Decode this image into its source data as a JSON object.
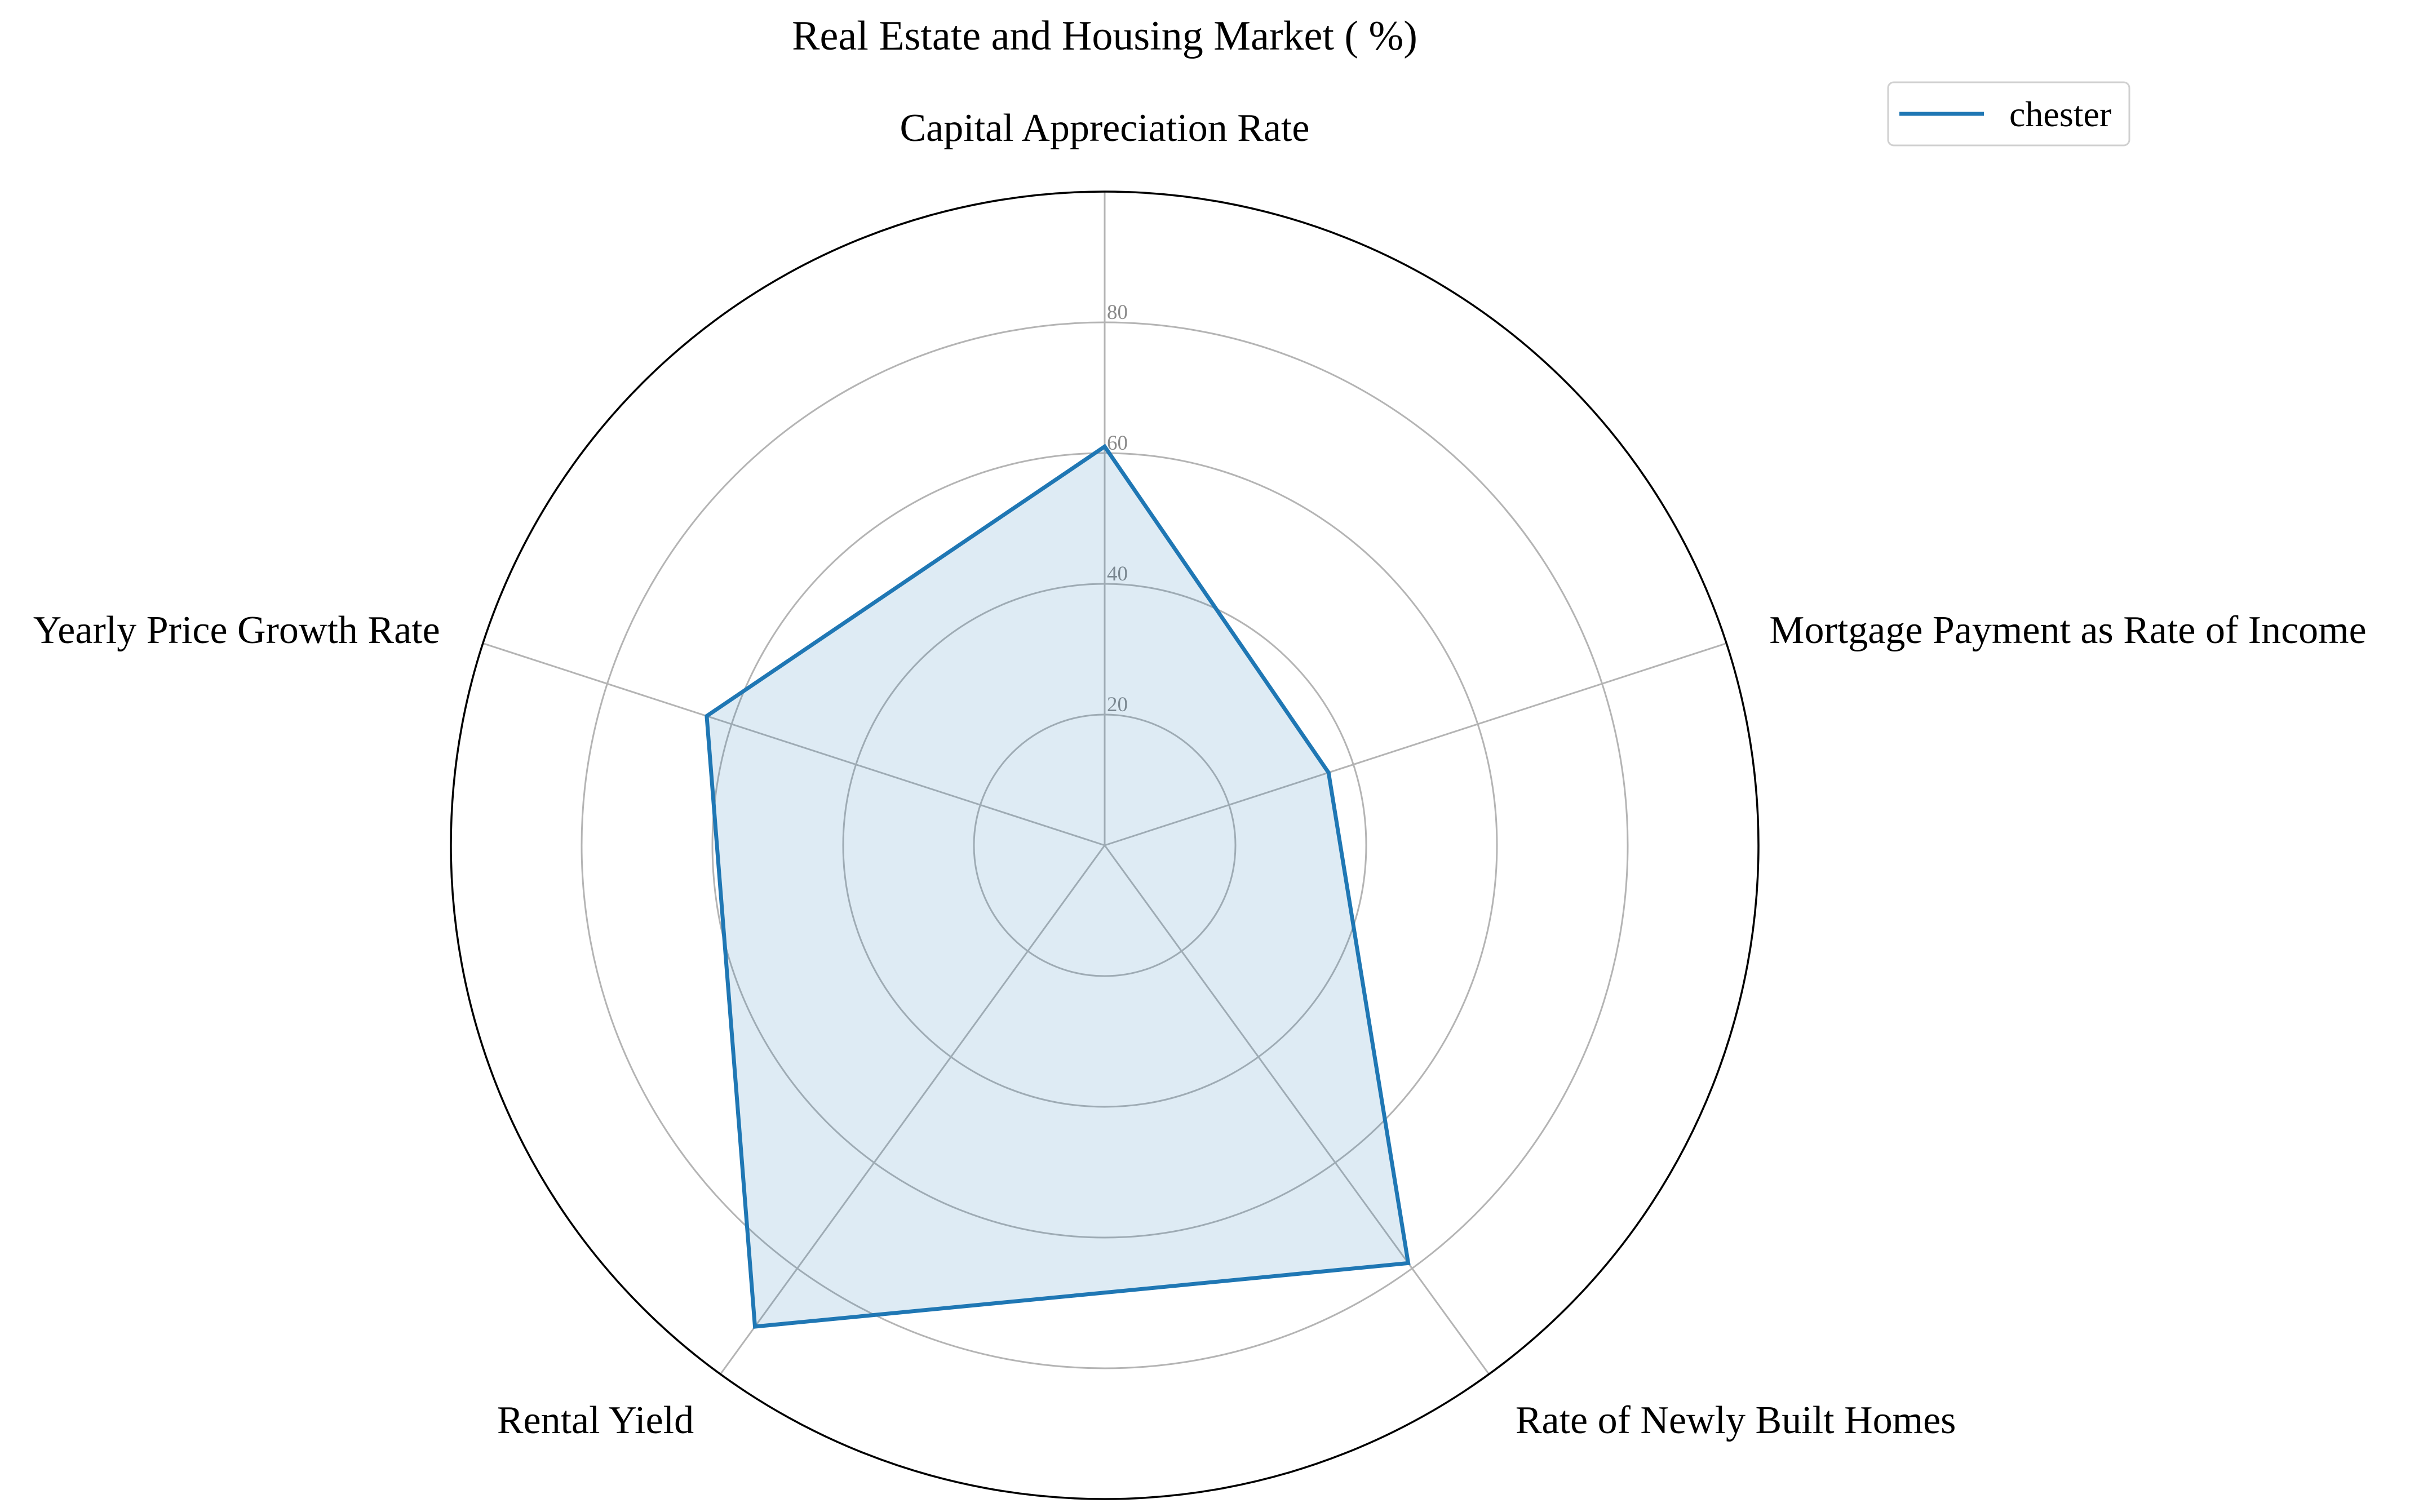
{
  "chart_data": {
    "type": "radar",
    "title": "Real Estate and Housing Market ( %)",
    "axes": [
      "Capital Appreciation Rate",
      "Mortgage Payment as Rate of Income",
      "Rate of Newly Built Homes",
      "Rental Yield",
      "Yearly Price Growth Rate"
    ],
    "series": [
      {
        "name": "chester",
        "values": [
          61,
          36,
          79,
          91,
          64
        ],
        "color": "#1f77b4",
        "fill_color": "#1f77b4",
        "fill_opacity": 0.15
      }
    ],
    "rlim": [
      0,
      100
    ],
    "rticks": [
      20,
      40,
      60,
      80
    ],
    "rtick_labels": [
      "20",
      "40",
      "60",
      "80"
    ],
    "grid": true,
    "legend": {
      "placement": "top-right"
    }
  }
}
